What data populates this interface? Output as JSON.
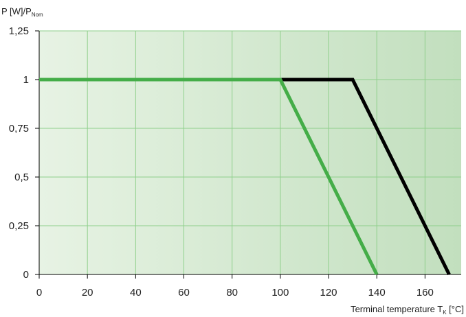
{
  "chart_data": {
    "type": "line",
    "ylabel_main": "P [W]/P",
    "ylabel_sub": "Nom",
    "xlabel_main": "Terminal temperature  T",
    "xlabel_sub": "K",
    "xlabel_unit": " [°C]",
    "xlim": [
      0,
      175
    ],
    "ylim": [
      0,
      1.25
    ],
    "grid": true,
    "legend": "none",
    "x_ticks": [
      {
        "value": 0,
        "label": "0"
      },
      {
        "value": 20,
        "label": "20"
      },
      {
        "value": 40,
        "label": "40"
      },
      {
        "value": 60,
        "label": "60"
      },
      {
        "value": 80,
        "label": "80"
      },
      {
        "value": 100,
        "label": "100"
      },
      {
        "value": 120,
        "label": "120"
      },
      {
        "value": 140,
        "label": "140"
      },
      {
        "value": 160,
        "label": "160"
      }
    ],
    "y_ticks": [
      {
        "value": 0,
        "label": "0"
      },
      {
        "value": 0.25,
        "label": "0,25"
      },
      {
        "value": 0.5,
        "label": "0,5"
      },
      {
        "value": 0.75,
        "label": "0,75"
      },
      {
        "value": 1,
        "label": "1"
      },
      {
        "value": 1.25,
        "label": "1,25"
      }
    ],
    "series": [
      {
        "color": "#000000",
        "points": [
          [
            0,
            1
          ],
          [
            130,
            1
          ],
          [
            170,
            0
          ]
        ]
      },
      {
        "color": "#44ad48",
        "points": [
          [
            0,
            1
          ],
          [
            100,
            1
          ],
          [
            140,
            0
          ]
        ]
      }
    ],
    "colors": {
      "background_left": "#e7f3e4",
      "background_right": "#c2dfbe",
      "grid": "#8ecf8b",
      "axis": "#000000"
    }
  }
}
